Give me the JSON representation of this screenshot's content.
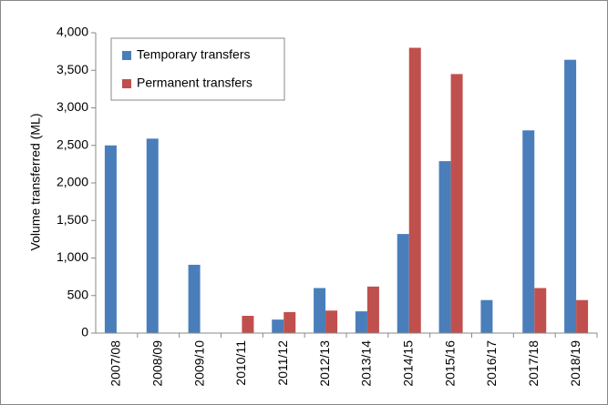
{
  "chart_data": {
    "type": "bar",
    "y_label": "Volume transferred (ML)",
    "categories": [
      "2007/08",
      "2008/09",
      "2009/10",
      "2010/11",
      "2011/12",
      "2012/13",
      "2013/14",
      "2014/15",
      "2015/16",
      "2016/17",
      "2017/18",
      "2018/19"
    ],
    "series": [
      {
        "name": "Temporary transfers",
        "color": "#4a7ebb",
        "values": [
          2500,
          2590,
          910,
          0,
          180,
          600,
          290,
          1320,
          2290,
          440,
          2700,
          3640
        ]
      },
      {
        "name": "Permanent transfers",
        "color": "#c0504d",
        "values": [
          0,
          0,
          0,
          230,
          280,
          300,
          620,
          3800,
          3450,
          0,
          600,
          440
        ]
      }
    ],
    "ylim": [
      0,
      4000
    ],
    "yticks": [
      0,
      500,
      {
        "value": 1000,
        "label": "1,000"
      },
      {
        "value": 1500,
        "label": "1,500"
      },
      {
        "value": 2000,
        "label": "2,000"
      },
      {
        "value": 2500,
        "label": "2,500"
      },
      {
        "value": 3000,
        "label": "3,000"
      },
      {
        "value": 3500,
        "label": "3,500"
      },
      {
        "value": 4000,
        "label": "4,000"
      }
    ],
    "legend": "top-left"
  }
}
